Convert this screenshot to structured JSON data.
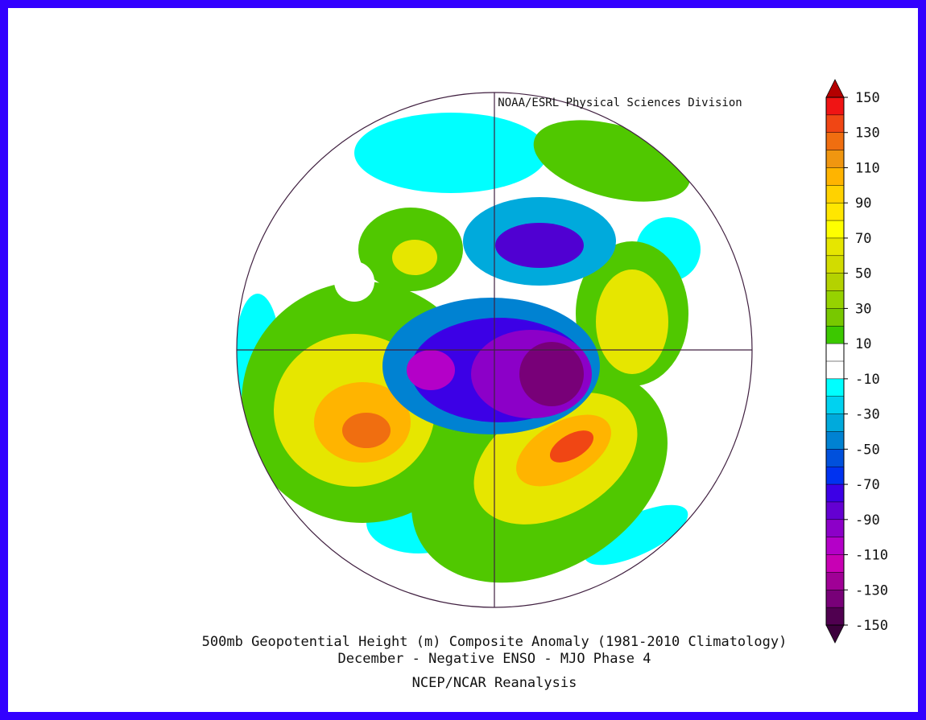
{
  "header": {
    "credit": "NOAA/ESRL Physical Sciences Division"
  },
  "footer": {
    "title": "500mb Geopotential Height (m) Composite Anomaly (1981-2010 Climatology)",
    "subtitle": "December - Negative ENSO - MJO Phase 4",
    "source": "NCEP/NCAR Reanalysis"
  },
  "colorbar": {
    "ticks": [
      150,
      130,
      110,
      90,
      70,
      50,
      30,
      10,
      -10,
      -30,
      -50,
      -70,
      -90,
      -110,
      -130,
      -150
    ],
    "colors": [
      "#f01414",
      "#f04614",
      "#f06e10",
      "#f09610",
      "#ffb400",
      "#ffd200",
      "#ffe600",
      "#ffff00",
      "#e6e600",
      "#d2dc00",
      "#b4d200",
      "#96d200",
      "#78c800",
      "#3cc800",
      "#ffffff",
      "#ffffff",
      "#00ffff",
      "#00d2f0",
      "#00aadc",
      "#0082d2",
      "#0050dc",
      "#0032f0",
      "#3c00e6",
      "#6400d2",
      "#8c00c8",
      "#b400c8",
      "#c800b4",
      "#a00096",
      "#780078",
      "#500050"
    ],
    "over_color": "#b40000",
    "under_color": "#3c003c"
  }
}
